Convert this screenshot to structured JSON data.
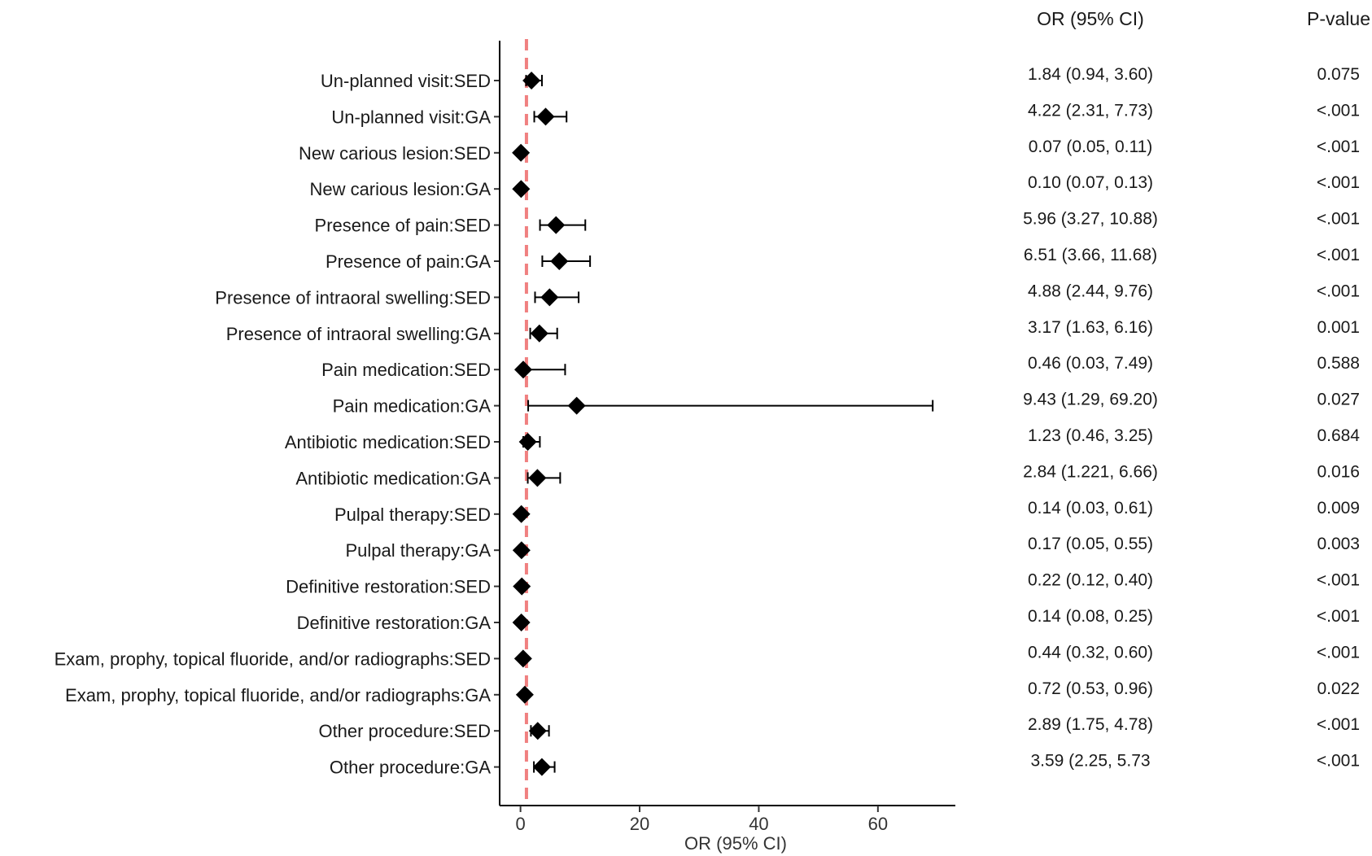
{
  "chart_data": {
    "type": "forest",
    "xlabel": "OR (95% CI)",
    "xlim": [
      -3.5,
      73
    ],
    "x_ticks": [
      0,
      20,
      40,
      60
    ],
    "reference_line": 1,
    "grid": false,
    "table_headers": {
      "or_ci": "OR (95% CI)",
      "p": "P-value"
    },
    "rows": [
      {
        "label": "Un-planned visit:SED",
        "or": 1.84,
        "lo": 0.94,
        "hi": 3.6,
        "or_text": "1.84 (0.94, 3.60)",
        "p": "0.075"
      },
      {
        "label": "Un-planned visit:GA",
        "or": 4.22,
        "lo": 2.31,
        "hi": 7.73,
        "or_text": "4.22 (2.31, 7.73)",
        "p": "<.001"
      },
      {
        "label": "New carious lesion:SED",
        "or": 0.07,
        "lo": 0.05,
        "hi": 0.11,
        "or_text": "0.07 (0.05, 0.11)",
        "p": "<.001"
      },
      {
        "label": "New carious lesion:GA",
        "or": 0.1,
        "lo": 0.07,
        "hi": 0.13,
        "or_text": "0.10 (0.07, 0.13)",
        "p": "<.001"
      },
      {
        "label": "Presence of pain:SED",
        "or": 5.96,
        "lo": 3.27,
        "hi": 10.88,
        "or_text": "5.96 (3.27, 10.88)",
        "p": "<.001"
      },
      {
        "label": "Presence of pain:GA",
        "or": 6.51,
        "lo": 3.66,
        "hi": 11.68,
        "or_text": "6.51 (3.66, 11.68)",
        "p": "<.001"
      },
      {
        "label": "Presence of intraoral swelling:SED",
        "or": 4.88,
        "lo": 2.44,
        "hi": 9.76,
        "or_text": "4.88 (2.44, 9.76)",
        "p": "<.001"
      },
      {
        "label": "Presence of intraoral swelling:GA",
        "or": 3.17,
        "lo": 1.63,
        "hi": 6.16,
        "or_text": "3.17 (1.63, 6.16)",
        "p": "0.001"
      },
      {
        "label": "Pain medication:SED",
        "or": 0.46,
        "lo": 0.03,
        "hi": 7.49,
        "or_text": "0.46 (0.03, 7.49)",
        "p": "0.588"
      },
      {
        "label": "Pain medication:GA",
        "or": 9.43,
        "lo": 1.29,
        "hi": 69.2,
        "or_text": "9.43 (1.29, 69.20)",
        "p": "0.027"
      },
      {
        "label": "Antibiotic medication:SED",
        "or": 1.23,
        "lo": 0.46,
        "hi": 3.25,
        "or_text": "1.23 (0.46, 3.25)",
        "p": "0.684"
      },
      {
        "label": "Antibiotic medication:GA",
        "or": 2.84,
        "lo": 1.221,
        "hi": 6.66,
        "or_text": "2.84 (1.221, 6.66)",
        "p": "0.016"
      },
      {
        "label": "Pulpal therapy:SED",
        "or": 0.14,
        "lo": 0.03,
        "hi": 0.61,
        "or_text": "0.14 (0.03, 0.61)",
        "p": "0.009"
      },
      {
        "label": "Pulpal therapy:GA",
        "or": 0.17,
        "lo": 0.05,
        "hi": 0.55,
        "or_text": "0.17 (0.05, 0.55)",
        "p": "0.003"
      },
      {
        "label": "Definitive restoration:SED",
        "or": 0.22,
        "lo": 0.12,
        "hi": 0.4,
        "or_text": "0.22 (0.12, 0.40)",
        "p": "<.001"
      },
      {
        "label": "Definitive restoration:GA",
        "or": 0.14,
        "lo": 0.08,
        "hi": 0.25,
        "or_text": "0.14 (0.08, 0.25)",
        "p": "<.001"
      },
      {
        "label": "Exam, prophy, topical fluoride, and/or radiographs:SED",
        "or": 0.44,
        "lo": 0.32,
        "hi": 0.6,
        "or_text": "0.44 (0.32, 0.60)",
        "p": "<.001"
      },
      {
        "label": "Exam, prophy, topical fluoride, and/or radiographs:GA",
        "or": 0.72,
        "lo": 0.53,
        "hi": 0.96,
        "or_text": "0.72 (0.53, 0.96)",
        "p": "0.022"
      },
      {
        "label": "Other procedure:SED",
        "or": 2.89,
        "lo": 1.75,
        "hi": 4.78,
        "or_text": "2.89 (1.75, 4.78)",
        "p": "<.001"
      },
      {
        "label": "Other procedure:GA",
        "or": 3.59,
        "lo": 2.25,
        "hi": 5.73,
        "or_text": "3.59 (2.25, 5.73",
        "p": "<.001"
      }
    ],
    "colors": {
      "reference_line": "#f08080",
      "marker": "#000000",
      "axis": "#000000"
    }
  }
}
